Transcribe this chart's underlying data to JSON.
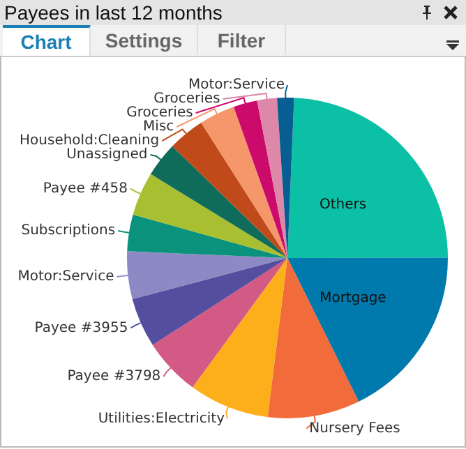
{
  "chart_data": {
    "type": "pie",
    "title": "Payees in last 12 months",
    "annotations": [
      "Chart",
      "Settings",
      "Filter"
    ],
    "categories": [
      "Others",
      "Mortgage",
      "Nursery Fees",
      "Utilities:Electricity",
      "Payee #3798",
      "Payee #3955",
      "Motor:Service",
      "Subscriptions",
      "Payee #458",
      "Unassigned",
      "Household:Cleaning",
      "Misc",
      "Groceries",
      "Groceries",
      "Motor:Service"
    ],
    "values": [
      24.3,
      17.7,
      9.3,
      8.1,
      5.8,
      5.0,
      4.8,
      3.7,
      4.4,
      3.5,
      3.7,
      3.6,
      2.4,
      2.0,
      1.7
    ],
    "colors": [
      "#0cc0a6",
      "#0079ad",
      "#f26b3a",
      "#fdaf1b",
      "#d35a85",
      "#534f9e",
      "#8c89c4",
      "#0a927c",
      "#a8bf32",
      "#0f6b5a",
      "#c14a1b",
      "#f5976a",
      "#cc0a6c",
      "#dd88a8",
      "#075e92"
    ],
    "legend": false
  }
}
